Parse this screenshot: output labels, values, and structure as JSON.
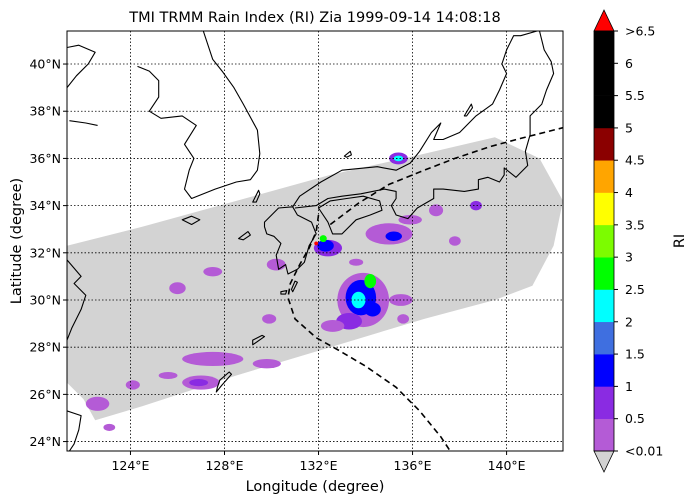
{
  "title": "TMI TRMM Rain Index (RI) Zia 1999-09-14 14:08:18",
  "xlabel": "Longitude (degree)",
  "ylabel": "Latitude (degree)",
  "colorbar": {
    "label": "RI",
    "tick_labels": [
      "<0.01",
      "0.5",
      "1",
      "1.5",
      "2",
      "2.5",
      "3",
      "3.5",
      "4",
      "4.5",
      "5",
      "5.5",
      "6",
      ">6.5"
    ],
    "colors": [
      "#b45bd6",
      "#8a2be2",
      "#0000ff",
      "#3f6fe0",
      "#00ffff",
      "#00ff00",
      "#7cfc00",
      "#ffff00",
      "#ffa500",
      "#8b0000",
      "#000000",
      "#000000",
      "#000000"
    ],
    "under_color": "#d3d3d3",
    "over_color": "#ff0000"
  },
  "chart_data": {
    "type": "map",
    "xlim": [
      121.3,
      142.4
    ],
    "ylim": [
      23.6,
      41.4
    ],
    "xticks": [
      124,
      128,
      132,
      136,
      140
    ],
    "xtick_labels": [
      "124°E",
      "128°E",
      "132°E",
      "136°E",
      "140°E"
    ],
    "yticks": [
      24,
      26,
      28,
      30,
      32,
      34,
      36,
      38,
      40
    ],
    "ytick_labels": [
      "24°N",
      "26°N",
      "28°N",
      "30°N",
      "32°N",
      "34°N",
      "36°N",
      "38°N",
      "40°N"
    ],
    "grid": true,
    "swath_polygon": [
      [
        121.3,
        32.3
      ],
      [
        124.5,
        33.1
      ],
      [
        128.5,
        34.2
      ],
      [
        132.5,
        35.3
      ],
      [
        136.5,
        36.2
      ],
      [
        139.5,
        36.9
      ],
      [
        141.4,
        36.0
      ],
      [
        142.4,
        34.2
      ],
      [
        142.0,
        32.3
      ],
      [
        141.1,
        30.6
      ],
      [
        139.5,
        30.0
      ],
      [
        136.5,
        29.2
      ],
      [
        132.5,
        28.0
      ],
      [
        128.5,
        26.8
      ],
      [
        124.5,
        25.5
      ],
      [
        122.5,
        24.9
      ],
      [
        122.0,
        25.8
      ],
      [
        121.3,
        26.5
      ]
    ],
    "rain_cells": [
      {
        "lon": 133.9,
        "lat": 30.0,
        "rx": 1.1,
        "ry": 1.15,
        "ri": 0.3
      },
      {
        "lon": 133.8,
        "lat": 30.1,
        "rx": 0.65,
        "ry": 0.75,
        "ri": 1.0
      },
      {
        "lon": 133.7,
        "lat": 30.0,
        "rx": 0.3,
        "ry": 0.35,
        "ri": 2.2
      },
      {
        "lon": 134.2,
        "lat": 30.8,
        "rx": 0.25,
        "ry": 0.3,
        "ri": 2.7
      },
      {
        "lon": 133.3,
        "lat": 29.1,
        "rx": 0.55,
        "ry": 0.35,
        "ri": 0.8
      },
      {
        "lon": 132.6,
        "lat": 28.9,
        "rx": 0.5,
        "ry": 0.25,
        "ri": 0.3
      },
      {
        "lon": 134.3,
        "lat": 29.6,
        "rx": 0.35,
        "ry": 0.3,
        "ri": 1.2
      },
      {
        "lon": 135.5,
        "lat": 30.0,
        "rx": 0.5,
        "ry": 0.25,
        "ri": 0.3
      },
      {
        "lon": 132.4,
        "lat": 32.2,
        "rx": 0.6,
        "ry": 0.35,
        "ri": 0.5
      },
      {
        "lon": 132.3,
        "lat": 32.3,
        "rx": 0.35,
        "ry": 0.25,
        "ri": 1.2
      },
      {
        "lon": 132.2,
        "lat": 32.6,
        "rx": 0.15,
        "ry": 0.15,
        "ri": 2.7
      },
      {
        "lon": 131.9,
        "lat": 32.4,
        "rx": 0.08,
        "ry": 0.08,
        "ri": 7.0
      },
      {
        "lon": 135.4,
        "lat": 36.0,
        "rx": 0.4,
        "ry": 0.25,
        "ri": 0.5
      },
      {
        "lon": 135.4,
        "lat": 36.0,
        "rx": 0.2,
        "ry": 0.12,
        "ri": 2.2
      },
      {
        "lon": 127.0,
        "lat": 26.5,
        "rx": 0.8,
        "ry": 0.3,
        "ri": 0.3
      },
      {
        "lon": 126.9,
        "lat": 26.5,
        "rx": 0.4,
        "ry": 0.15,
        "ri": 0.8
      },
      {
        "lon": 127.5,
        "lat": 27.5,
        "rx": 1.3,
        "ry": 0.3,
        "ri": 0.2
      },
      {
        "lon": 129.8,
        "lat": 27.3,
        "rx": 0.6,
        "ry": 0.2,
        "ri": 0.3
      },
      {
        "lon": 125.6,
        "lat": 26.8,
        "rx": 0.4,
        "ry": 0.15,
        "ri": 0.2
      },
      {
        "lon": 124.1,
        "lat": 26.4,
        "rx": 0.3,
        "ry": 0.2,
        "ri": 0.2
      },
      {
        "lon": 122.6,
        "lat": 25.6,
        "rx": 0.5,
        "ry": 0.3,
        "ri": 0.2
      },
      {
        "lon": 123.1,
        "lat": 24.6,
        "rx": 0.25,
        "ry": 0.15,
        "ri": 0.3
      },
      {
        "lon": 130.2,
        "lat": 31.5,
        "rx": 0.4,
        "ry": 0.25,
        "ri": 0.3
      },
      {
        "lon": 127.5,
        "lat": 31.2,
        "rx": 0.4,
        "ry": 0.2,
        "ri": 0.2
      },
      {
        "lon": 126.0,
        "lat": 30.5,
        "rx": 0.35,
        "ry": 0.25,
        "ri": 0.3
      },
      {
        "lon": 129.9,
        "lat": 29.2,
        "rx": 0.3,
        "ry": 0.2,
        "ri": 0.2
      },
      {
        "lon": 135.0,
        "lat": 32.8,
        "rx": 1.0,
        "ry": 0.45,
        "ri": 0.3
      },
      {
        "lon": 135.2,
        "lat": 32.7,
        "rx": 0.35,
        "ry": 0.2,
        "ri": 1.2
      },
      {
        "lon": 137.0,
        "lat": 33.8,
        "rx": 0.3,
        "ry": 0.25,
        "ri": 0.3
      },
      {
        "lon": 137.8,
        "lat": 32.5,
        "rx": 0.25,
        "ry": 0.2,
        "ri": 0.3
      },
      {
        "lon": 138.7,
        "lat": 34.0,
        "rx": 0.25,
        "ry": 0.2,
        "ri": 0.5
      },
      {
        "lon": 135.9,
        "lat": 33.4,
        "rx": 0.5,
        "ry": 0.2,
        "ri": 0.3
      },
      {
        "lon": 133.6,
        "lat": 31.6,
        "rx": 0.3,
        "ry": 0.15,
        "ri": 0.2
      },
      {
        "lon": 135.6,
        "lat": 29.2,
        "rx": 0.25,
        "ry": 0.2,
        "ri": 0.3
      }
    ],
    "coastlines": [
      {
        "name": "Korea",
        "closed": false,
        "points": [
          [
            127.1,
            41.4
          ],
          [
            127.5,
            40.2
          ],
          [
            127.9,
            39.7
          ],
          [
            128.4,
            39.0
          ],
          [
            128.8,
            38.3
          ],
          [
            129.4,
            37.2
          ],
          [
            129.5,
            36.2
          ],
          [
            129.4,
            35.5
          ],
          [
            129.1,
            35.1
          ],
          [
            128.5,
            35.0
          ],
          [
            127.6,
            34.7
          ],
          [
            126.6,
            34.3
          ],
          [
            126.3,
            34.7
          ],
          [
            126.5,
            35.5
          ],
          [
            126.7,
            36.0
          ],
          [
            126.3,
            36.6
          ],
          [
            126.8,
            37.4
          ],
          [
            126.2,
            37.8
          ],
          [
            125.3,
            37.7
          ],
          [
            124.8,
            38.0
          ],
          [
            125.2,
            38.6
          ],
          [
            125.2,
            39.3
          ],
          [
            124.8,
            39.7
          ],
          [
            124.3,
            39.9
          ]
        ]
      },
      {
        "name": "Liaoning-Shandong",
        "closed": false,
        "points": [
          [
            121.3,
            39.0
          ],
          [
            121.7,
            39.5
          ],
          [
            122.2,
            40.0
          ],
          [
            122.5,
            40.5
          ],
          [
            121.8,
            40.8
          ],
          [
            121.3,
            40.7
          ]
        ]
      },
      {
        "name": "China coast",
        "closed": false,
        "points": [
          [
            121.3,
            31.7
          ],
          [
            121.9,
            31.0
          ],
          [
            121.6,
            30.7
          ],
          [
            122.1,
            30.2
          ],
          [
            121.9,
            29.6
          ],
          [
            121.5,
            28.8
          ],
          [
            121.3,
            28.3
          ]
        ]
      },
      {
        "name": "Taiwan",
        "closed": false,
        "points": [
          [
            121.3,
            25.3
          ],
          [
            121.9,
            25.1
          ],
          [
            121.8,
            24.5
          ],
          [
            121.6,
            23.9
          ],
          [
            121.4,
            23.6
          ]
        ]
      },
      {
        "name": "Jeju",
        "closed": true,
        "points": [
          [
            126.2,
            33.4
          ],
          [
            126.6,
            33.55
          ],
          [
            126.95,
            33.4
          ],
          [
            126.6,
            33.2
          ]
        ]
      },
      {
        "name": "Kyushu",
        "closed": true,
        "points": [
          [
            129.7,
            33.3
          ],
          [
            130.3,
            33.9
          ],
          [
            130.9,
            33.95
          ],
          [
            131.1,
            33.6
          ],
          [
            131.7,
            33.3
          ],
          [
            131.9,
            32.8
          ],
          [
            131.6,
            32.3
          ],
          [
            131.4,
            31.6
          ],
          [
            131.1,
            31.3
          ],
          [
            130.7,
            31.1
          ],
          [
            130.6,
            31.5
          ],
          [
            130.3,
            31.3
          ],
          [
            130.2,
            31.9
          ],
          [
            130.4,
            32.4
          ],
          [
            130.1,
            32.7
          ],
          [
            129.8,
            32.8
          ],
          [
            129.7,
            33.1
          ]
        ]
      },
      {
        "name": "Shikoku",
        "closed": true,
        "points": [
          [
            132.0,
            33.9
          ],
          [
            132.5,
            34.2
          ],
          [
            133.2,
            34.3
          ],
          [
            133.9,
            34.4
          ],
          [
            134.6,
            34.2
          ],
          [
            134.7,
            33.8
          ],
          [
            134.2,
            33.6
          ],
          [
            133.6,
            33.4
          ],
          [
            133.0,
            32.8
          ],
          [
            132.6,
            32.8
          ],
          [
            132.4,
            33.3
          ]
        ]
      },
      {
        "name": "Honshu",
        "closed": false,
        "points": [
          [
            130.9,
            33.95
          ],
          [
            131.2,
            34.4
          ],
          [
            132.1,
            35.0
          ],
          [
            133.0,
            35.5
          ],
          [
            134.5,
            35.65
          ],
          [
            135.3,
            35.5
          ],
          [
            135.9,
            35.8
          ],
          [
            136.3,
            36.3
          ],
          [
            136.8,
            37.1
          ],
          [
            137.2,
            37.5
          ],
          [
            136.9,
            36.8
          ],
          [
            137.3,
            36.8
          ],
          [
            138.0,
            37.1
          ],
          [
            138.7,
            37.8
          ],
          [
            139.4,
            38.3
          ],
          [
            139.7,
            38.9
          ],
          [
            140.0,
            39.6
          ],
          [
            139.8,
            40.0
          ],
          [
            140.0,
            40.6
          ],
          [
            140.3,
            41.2
          ],
          [
            140.6,
            41.2
          ],
          [
            141.3,
            41.4
          ]
        ]
      },
      {
        "name": "Honshu south",
        "closed": false,
        "points": [
          [
            131.0,
            33.9
          ],
          [
            131.9,
            34.0
          ],
          [
            132.4,
            34.3
          ],
          [
            133.0,
            34.4
          ],
          [
            133.8,
            34.5
          ],
          [
            134.8,
            34.7
          ],
          [
            135.3,
            34.6
          ],
          [
            135.3,
            34.3
          ],
          [
            135.1,
            34.0
          ],
          [
            135.3,
            33.6
          ],
          [
            135.8,
            33.45
          ],
          [
            136.2,
            33.9
          ],
          [
            136.9,
            34.3
          ],
          [
            136.9,
            34.7
          ],
          [
            137.3,
            34.7
          ],
          [
            138.2,
            34.6
          ],
          [
            138.8,
            34.7
          ],
          [
            138.8,
            35.1
          ],
          [
            139.2,
            35.2
          ],
          [
            139.7,
            35.0
          ],
          [
            139.9,
            35.3
          ],
          [
            139.9,
            35.6
          ],
          [
            140.4,
            35.2
          ],
          [
            140.9,
            35.7
          ],
          [
            140.8,
            36.3
          ],
          [
            141.0,
            37.0
          ],
          [
            141.0,
            37.8
          ],
          [
            141.5,
            38.3
          ],
          [
            141.7,
            38.9
          ],
          [
            142.0,
            39.6
          ],
          [
            141.9,
            40.1
          ],
          [
            141.6,
            40.6
          ],
          [
            141.4,
            41.4
          ]
        ]
      },
      {
        "name": "Okinawa",
        "closed": true,
        "points": [
          [
            127.65,
            26.1
          ],
          [
            127.9,
            26.4
          ],
          [
            128.3,
            26.85
          ],
          [
            128.2,
            26.95
          ],
          [
            127.8,
            26.6
          ],
          [
            127.7,
            26.3
          ]
        ]
      },
      {
        "name": "Amami",
        "closed": true,
        "points": [
          [
            129.2,
            28.1
          ],
          [
            129.7,
            28.45
          ],
          [
            129.6,
            28.5
          ],
          [
            129.2,
            28.3
          ]
        ]
      },
      {
        "name": "Tanegashima",
        "closed": true,
        "points": [
          [
            130.9,
            30.35
          ],
          [
            131.1,
            30.75
          ],
          [
            131.0,
            30.8
          ],
          [
            130.85,
            30.45
          ]
        ]
      },
      {
        "name": "Yakushima",
        "closed": true,
        "points": [
          [
            130.4,
            30.35
          ],
          [
            130.65,
            30.4
          ],
          [
            130.6,
            30.25
          ],
          [
            130.4,
            30.25
          ]
        ]
      },
      {
        "name": "Goto",
        "closed": true,
        "points": [
          [
            128.6,
            32.6
          ],
          [
            129.0,
            32.9
          ],
          [
            129.1,
            32.75
          ],
          [
            128.8,
            32.55
          ]
        ]
      },
      {
        "name": "Tsushima",
        "closed": true,
        "points": [
          [
            129.2,
            34.15
          ],
          [
            129.45,
            34.65
          ],
          [
            129.5,
            34.5
          ],
          [
            129.35,
            34.15
          ]
        ]
      },
      {
        "name": "Oki",
        "closed": true,
        "points": [
          [
            133.1,
            36.1
          ],
          [
            133.35,
            36.3
          ],
          [
            133.4,
            36.15
          ],
          [
            133.2,
            36.05
          ]
        ]
      },
      {
        "name": "Sado",
        "closed": true,
        "points": [
          [
            138.2,
            37.8
          ],
          [
            138.5,
            38.3
          ],
          [
            138.55,
            38.15
          ],
          [
            138.3,
            37.8
          ]
        ]
      },
      {
        "name": "Shandong",
        "closed": false,
        "points": [
          [
            122.6,
            37.4
          ],
          [
            122.1,
            37.5
          ],
          [
            121.4,
            37.6
          ]
        ]
      }
    ],
    "tracks": [
      {
        "name": "track-a",
        "points": [
          [
            132.5,
            33.2
          ],
          [
            133.7,
            34.1
          ],
          [
            135.0,
            34.9
          ],
          [
            136.5,
            35.5
          ],
          [
            137.8,
            36.0
          ],
          [
            139.3,
            36.5
          ],
          [
            140.6,
            36.85
          ],
          [
            142.4,
            37.3
          ]
        ]
      },
      {
        "name": "track-b",
        "points": [
          [
            132.0,
            33.6
          ],
          [
            131.9,
            32.9
          ],
          [
            131.6,
            32.2
          ],
          [
            131.2,
            31.5
          ],
          [
            130.8,
            30.7
          ],
          [
            130.7,
            30.1
          ],
          [
            131.0,
            29.2
          ],
          [
            131.9,
            28.4
          ],
          [
            132.8,
            27.9
          ],
          [
            134.0,
            27.2
          ],
          [
            135.3,
            26.3
          ],
          [
            136.3,
            25.3
          ],
          [
            137.2,
            24.2
          ],
          [
            137.6,
            23.6
          ]
        ]
      }
    ]
  }
}
